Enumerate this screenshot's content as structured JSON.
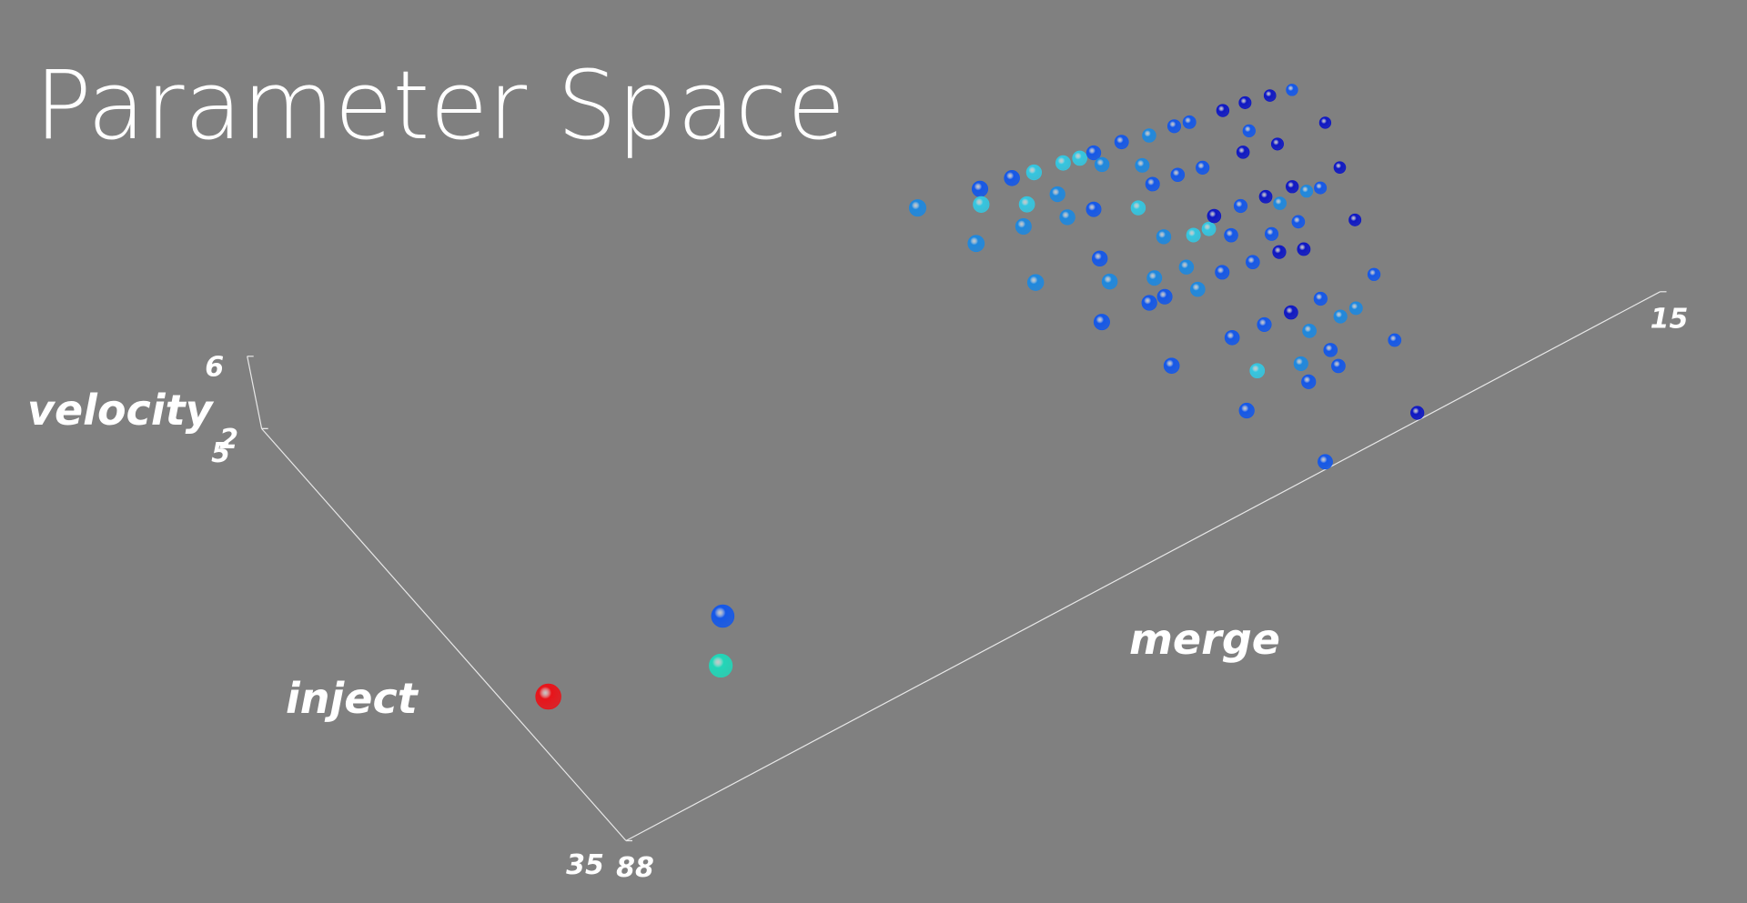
{
  "chart_data": {
    "type": "scatter3d",
    "title": "Parameter Space",
    "x_label": "merge",
    "y_label": "inject",
    "z_label": "velocity",
    "xlim": [
      88,
      15
    ],
    "ylim": [
      35,
      5
    ],
    "zlim": [
      2,
      6
    ],
    "xticks": [
      88,
      15
    ],
    "yticks": [
      35,
      5
    ],
    "zticks": [
      2,
      6
    ],
    "x": [
      48.3,
      44.5,
      45.1,
      47.0,
      42.5,
      41.2,
      42.9,
      44.0,
      45.8,
      41.0,
      39.4,
      38.4,
      37.5,
      37.6,
      39.9,
      41.5,
      41.7,
      44.3,
      42.2,
      35.7,
      37.7,
      35.7,
      34.1,
      36.0,
      37.7,
      39.9,
      40.2,
      41.2,
      42.8,
      32.5,
      31.6,
      34.4,
      37.9,
      36.2,
      35.2,
      38.3,
      29.5,
      32.9,
      34.4,
      36.4,
      34.4,
      38.7,
      28.1,
      26.6,
      25.3,
      29.1,
      30.3,
      28.3,
      32.7,
      31.1,
      30.7,
      34.5,
      32.8,
      32.4,
      29.4,
      28.9,
      28.1,
      30.6,
      31.5,
      25.1,
      26.3,
      27.8,
      29.2,
      36.6,
      34.8,
      34.7,
      32.8,
      32.6,
      31.5,
      34.5,
      34.8,
      36.9,
      36.5,
      38.9,
      41.1,
      31.0,
      39.5,
      33.0,
      86.8,
      77.2,
      75.0
    ],
    "y": [
      13.3,
      14.0,
      14.8,
      16.6,
      14.3,
      14.6,
      16.0,
      17.0,
      20.1,
      16.3,
      14.9,
      15.1,
      15.2,
      16.0,
      18.0,
      17.7,
      20.6,
      23.8,
      22.0,
      15.4,
      19.1,
      17.1,
      15.8,
      18.3,
      21.2,
      23.0,
      24.2,
      24.1,
      27.8,
      16.0,
      16.2,
      18.5,
      23.3,
      21.9,
      22.0,
      24.7,
      16.5,
      18.8,
      21.5,
      24.5,
      22.9,
      28.0,
      16.7,
      17.0,
      17.3,
      18.2,
      19.1,
      19.6,
      21.7,
      21.9,
      22.6,
      24.8,
      25.0,
      23.9,
      22.1,
      22.7,
      22.9,
      24.0,
      25.5,
      19.8,
      22.4,
      25.4,
      28.6,
      28.2,
      28.3,
      29.7,
      28.4,
      29.8,
      29.8,
      31.2,
      32.2,
      32.2,
      31.1,
      30.3,
      32.0,
      32.4,
      36.6,
      36.6,
      27.8,
      30.8,
      28.4
    ],
    "z": [
      4,
      4,
      4,
      4,
      4,
      4,
      4,
      4,
      4,
      4,
      4,
      4,
      4,
      4,
      4,
      4,
      4,
      4,
      4,
      4,
      4,
      4,
      4,
      4,
      4,
      4,
      4,
      4,
      4,
      4,
      4,
      4,
      4,
      4,
      4,
      4,
      4,
      4,
      4,
      4,
      4,
      4,
      4,
      4,
      4,
      4,
      4,
      4,
      4,
      4,
      4,
      4,
      4,
      4,
      4,
      4,
      4,
      4,
      4,
      4,
      4,
      4,
      4,
      4,
      4,
      4,
      4,
      4,
      4,
      4,
      4,
      4,
      4,
      4,
      4,
      4,
      4,
      4,
      4,
      4,
      4
    ],
    "colors": [
      "#1f88de",
      "#1558e8",
      "#35c6e0",
      "#1f88de",
      "#1558e8",
      "#35c6e0",
      "#35c6e0",
      "#1f88de",
      "#1f88de",
      "#1f88de",
      "#35c6e0",
      "#35c6e0",
      "#1558e8",
      "#1f88de",
      "#1558e8",
      "#1f88de",
      "#1558e8",
      "#1558e8",
      "#1f88de",
      "#1558e8",
      "#35c6e0",
      "#1f88de",
      "#1f88de",
      "#1558e8",
      "#1f88de",
      "#1f88de",
      "#1558e8",
      "#1558e8",
      "#1558e8",
      "#1558e8",
      "#1558e8",
      "#1558e8",
      "#1f88de",
      "#35c6e0",
      "#35c6e0",
      "#1f88de",
      "#0f18c4",
      "#1558e8",
      "#0f18c4",
      "#1558e8",
      "#1558e8",
      "#1558e8",
      "#0f18c4",
      "#0f18c4",
      "#1558e8",
      "#1558e8",
      "#0f18c4",
      "#0f18c4",
      "#1558e8",
      "#0f18c4",
      "#1f88de",
      "#1558e8",
      "#0f18c4",
      "#1558e8",
      "#0f18c4",
      "#1f88de",
      "#1558e8",
      "#1558e8",
      "#0f18c4",
      "#0f18c4",
      "#0f18c4",
      "#0f18c4",
      "#1558e8",
      "#1558e8",
      "#0f18c4",
      "#1f88de",
      "#1558e8",
      "#1f88de",
      "#1f88de",
      "#1558e8",
      "#1558e8",
      "#1558e8",
      "#1f88de",
      "#35c6e0",
      "#1558e8",
      "#1558e8",
      "#1558e8",
      "#0f18c4",
      "#e8141a",
      "#22d6b8",
      "#1558e8"
    ]
  }
}
